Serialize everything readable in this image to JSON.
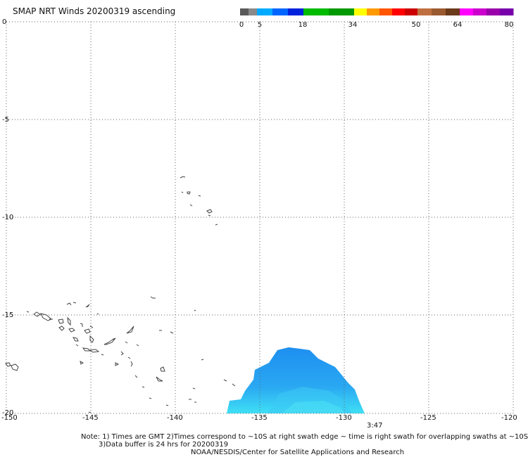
{
  "title": "SMAP NRT Winds 20200319 ascending",
  "colorbar": {
    "labels": [
      "0",
      "5",
      "18",
      "34",
      "50",
      "64",
      "80"
    ],
    "segments": [
      {
        "color": "#5a5a5a"
      },
      {
        "color": "#8a8a8a"
      },
      {
        "color": "#00aaff"
      },
      {
        "color": "#0066ff"
      },
      {
        "color": "#0022dd"
      },
      {
        "color": "#00bb00"
      },
      {
        "color": "#009900"
      },
      {
        "color": "#ffff00"
      },
      {
        "color": "#ff9900"
      },
      {
        "color": "#ff5500"
      },
      {
        "color": "#ff0000"
      },
      {
        "color": "#cc0000"
      },
      {
        "color": "#c07040"
      },
      {
        "color": "#9a5a30"
      },
      {
        "color": "#6a3a1a"
      },
      {
        "color": "#ff00ff"
      },
      {
        "color": "#cc00cc"
      },
      {
        "color": "#9900aa"
      },
      {
        "color": "#7700aa"
      }
    ]
  },
  "lat_labels": [
    "0",
    "-5",
    "-10",
    "-15",
    "-20"
  ],
  "lon_labels": [
    "-150",
    "-145",
    "-140",
    "-135",
    "-130",
    "-125",
    "-120"
  ],
  "time_label": "3:47",
  "notes": {
    "line1": "Note: 1) Times are GMT 2)Times correspond to ~10S at right swath edge ~ time is right swath for overlapping swaths at ~10S",
    "line2": "3)Data buffer is 24 hrs for 20200319",
    "line3": "NOAA/NESDIS/Center for Satellite Applications and Research"
  },
  "colors": {
    "swath": "#1e9bf0",
    "swath_light": "#3fd0f5",
    "coast": "#444444",
    "grid": "#666666"
  }
}
